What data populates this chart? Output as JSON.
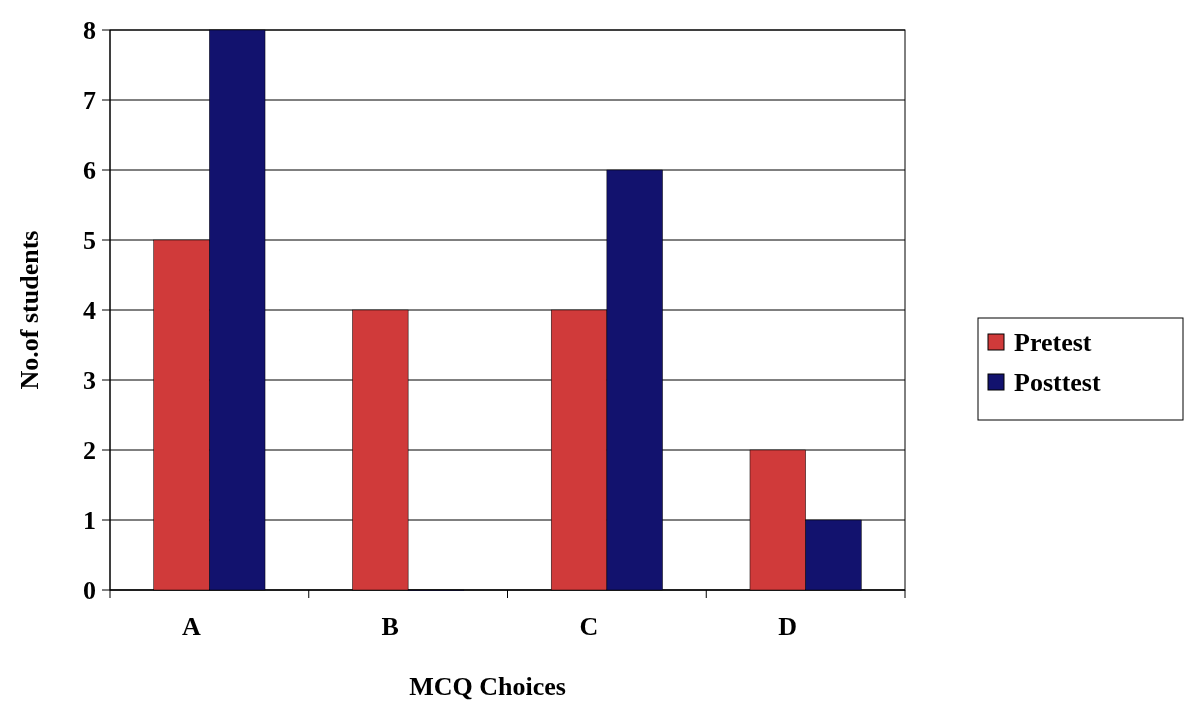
{
  "chart_data": {
    "type": "bar",
    "xlabel": "MCQ Choices",
    "ylabel": "No.of students",
    "categories": [
      "A",
      "B",
      "C",
      "D"
    ],
    "series": [
      {
        "name": "Pretest",
        "color": "#d03a3a",
        "values": [
          5,
          4,
          4,
          2
        ]
      },
      {
        "name": "Posttest",
        "color": "#12126e",
        "values": [
          8,
          0,
          6,
          1
        ]
      }
    ],
    "ylim": [
      0,
      8
    ],
    "yticks": [
      0,
      1,
      2,
      3,
      4,
      5,
      6,
      7,
      8
    ],
    "grid": "y",
    "legend": "right"
  }
}
